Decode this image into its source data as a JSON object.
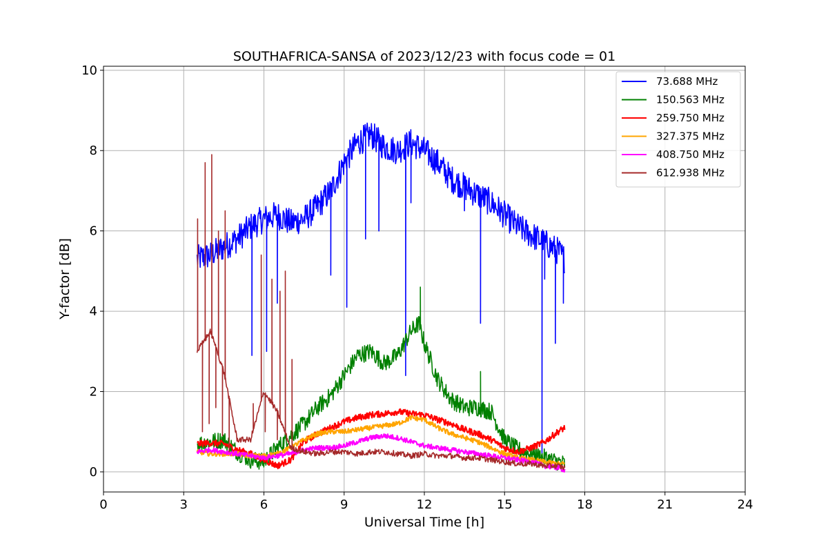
{
  "chart_data": {
    "type": "line",
    "title": "SOUTHAFRICA-SANSA of 2023/12/23 with focus code = 01",
    "xlabel": "Universal Time [h]",
    "ylabel": "Y-factor [dB]",
    "xlim": [
      0,
      24
    ],
    "ylim": [
      -0.5,
      10.1
    ],
    "xticks": [
      0,
      3,
      6,
      9,
      12,
      15,
      18,
      21,
      24
    ],
    "yticks": [
      0,
      2,
      4,
      6,
      8,
      10
    ],
    "grid": true,
    "legend_position": "top-right",
    "series": [
      {
        "name": " 73.688 MHz",
        "color": "#0000ff",
        "noise": 0.35,
        "x": [
          3.5,
          4.0,
          4.5,
          5.0,
          5.5,
          6.0,
          6.5,
          7.0,
          7.5,
          8.0,
          8.5,
          9.0,
          9.5,
          10.0,
          10.5,
          11.0,
          11.5,
          12.0,
          12.5,
          13.0,
          13.5,
          14.0,
          14.5,
          15.0,
          15.5,
          16.0,
          16.5,
          17.0,
          17.25
        ],
        "y": [
          5.3,
          5.4,
          5.6,
          5.8,
          6.1,
          6.3,
          6.4,
          6.2,
          6.3,
          6.6,
          7.0,
          7.7,
          8.2,
          8.4,
          8.1,
          8.0,
          8.2,
          8.0,
          7.7,
          7.3,
          7.1,
          6.9,
          6.7,
          6.4,
          6.1,
          5.9,
          5.7,
          5.5,
          5.3
        ],
        "spikes": [
          [
            5.55,
            2.9
          ],
          [
            6.1,
            3.0
          ],
          [
            6.5,
            4.2
          ],
          [
            8.5,
            4.9
          ],
          [
            9.1,
            4.1
          ],
          [
            9.8,
            5.8
          ],
          [
            10.3,
            6.0
          ],
          [
            11.3,
            2.4
          ],
          [
            11.5,
            6.7
          ],
          [
            13.5,
            6.5
          ],
          [
            14.1,
            3.7
          ],
          [
            16.4,
            0.4
          ],
          [
            16.5,
            4.8
          ],
          [
            16.9,
            3.2
          ],
          [
            17.2,
            4.2
          ]
        ]
      },
      {
        "name": "150.563 MHz",
        "color": "#008000",
        "noise": 0.22,
        "x": [
          3.5,
          4.0,
          4.5,
          5.0,
          5.5,
          6.0,
          6.5,
          7.0,
          7.5,
          8.0,
          8.5,
          9.0,
          9.5,
          10.0,
          10.5,
          11.0,
          11.5,
          11.8,
          12.0,
          12.5,
          13.0,
          13.5,
          14.0,
          14.5,
          15.0,
          15.5,
          16.0,
          16.5,
          17.0,
          17.25
        ],
        "y": [
          0.7,
          0.75,
          0.8,
          0.5,
          0.3,
          0.25,
          0.6,
          0.9,
          1.2,
          1.6,
          1.9,
          2.4,
          2.9,
          3.0,
          2.7,
          2.9,
          3.5,
          3.7,
          3.2,
          2.3,
          1.8,
          1.6,
          1.6,
          1.5,
          0.8,
          0.55,
          0.45,
          0.35,
          0.25,
          0.2
        ],
        "spikes": [
          [
            11.85,
            4.6
          ],
          [
            14.1,
            2.5
          ]
        ]
      },
      {
        "name": "259.750 MHz",
        "color": "#ff0000",
        "noise": 0.08,
        "x": [
          3.5,
          4.0,
          4.5,
          5.0,
          5.5,
          6.0,
          6.5,
          7.0,
          7.5,
          8.0,
          8.5,
          9.0,
          9.5,
          10.0,
          10.5,
          11.0,
          11.5,
          12.0,
          12.5,
          13.0,
          13.5,
          14.0,
          14.5,
          15.0,
          15.5,
          16.0,
          16.5,
          17.0,
          17.25
        ],
        "y": [
          0.7,
          0.72,
          0.7,
          0.55,
          0.45,
          0.3,
          0.15,
          0.3,
          0.75,
          0.95,
          1.1,
          1.25,
          1.35,
          1.42,
          1.45,
          1.5,
          1.45,
          1.42,
          1.3,
          1.2,
          1.05,
          0.95,
          0.8,
          0.6,
          0.5,
          0.6,
          0.75,
          1.0,
          1.1
        ],
        "spikes": []
      },
      {
        "name": "327.375 MHz",
        "color": "#ffa500",
        "noise": 0.06,
        "x": [
          3.5,
          4.0,
          4.5,
          5.0,
          5.5,
          6.0,
          6.5,
          7.0,
          7.5,
          8.0,
          8.5,
          9.0,
          9.5,
          10.0,
          10.5,
          11.0,
          11.5,
          12.0,
          12.5,
          13.0,
          13.5,
          14.0,
          14.5,
          15.0,
          15.5,
          16.0,
          16.5,
          17.0,
          17.25
        ],
        "y": [
          0.5,
          0.45,
          0.45,
          0.45,
          0.4,
          0.4,
          0.45,
          0.6,
          0.8,
          0.95,
          1.0,
          1.0,
          1.05,
          1.1,
          1.15,
          1.2,
          1.35,
          1.3,
          1.1,
          0.95,
          0.85,
          0.75,
          0.6,
          0.45,
          0.35,
          0.3,
          0.25,
          0.2,
          0.2
        ],
        "spikes": []
      },
      {
        "name": "408.750 MHz",
        "color": "#ff00ff",
        "noise": 0.06,
        "x": [
          3.5,
          4.0,
          4.5,
          5.0,
          5.5,
          6.0,
          6.5,
          7.0,
          7.5,
          8.0,
          8.5,
          9.0,
          9.5,
          10.0,
          10.5,
          11.0,
          11.5,
          12.0,
          12.5,
          13.0,
          13.5,
          14.0,
          14.5,
          15.0,
          15.5,
          16.0,
          16.5,
          17.0,
          17.25
        ],
        "y": [
          0.5,
          0.55,
          0.5,
          0.45,
          0.4,
          0.35,
          0.4,
          0.45,
          0.55,
          0.6,
          0.6,
          0.65,
          0.75,
          0.85,
          0.9,
          0.85,
          0.75,
          0.65,
          0.6,
          0.55,
          0.5,
          0.45,
          0.4,
          0.35,
          0.3,
          0.25,
          0.15,
          0.1,
          0.05
        ],
        "spikes": []
      },
      {
        "name": "612.938 MHz",
        "color": "#a52a2a",
        "noise": 0.07,
        "x": [
          3.5,
          4.0,
          4.5,
          5.0,
          5.5,
          6.0,
          6.5,
          7.0,
          7.5,
          8.0,
          8.5,
          9.0,
          9.5,
          10.0,
          10.5,
          11.0,
          11.5,
          12.0,
          12.5,
          13.0,
          13.5,
          14.0,
          14.5,
          15.0,
          15.5,
          16.0,
          16.5,
          17.0,
          17.25
        ],
        "y": [
          3.0,
          3.5,
          2.5,
          0.8,
          0.8,
          2.0,
          1.5,
          0.6,
          0.5,
          0.45,
          0.5,
          0.5,
          0.45,
          0.5,
          0.5,
          0.45,
          0.4,
          0.45,
          0.4,
          0.4,
          0.35,
          0.35,
          0.3,
          0.25,
          0.2,
          0.2,
          0.15,
          0.15,
          0.1
        ],
        "spikes": [
          [
            3.52,
            6.3
          ],
          [
            3.7,
            1.0
          ],
          [
            3.8,
            7.7
          ],
          [
            3.95,
            1.2
          ],
          [
            4.05,
            7.9
          ],
          [
            4.2,
            1.6
          ],
          [
            4.3,
            6.0
          ],
          [
            4.45,
            0.9
          ],
          [
            4.55,
            6.5
          ],
          [
            4.7,
            0.5
          ],
          [
            5.6,
            1.7
          ],
          [
            5.9,
            5.4
          ],
          [
            6.05,
            1.0
          ],
          [
            6.3,
            4.8
          ],
          [
            6.5,
            0.8
          ],
          [
            6.6,
            4.5
          ],
          [
            6.8,
            5.0
          ],
          [
            7.05,
            2.8
          ]
        ]
      }
    ]
  }
}
